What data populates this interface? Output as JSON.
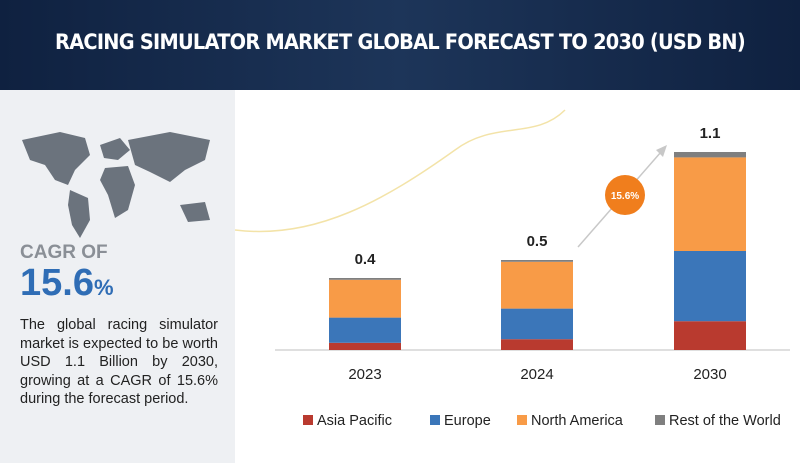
{
  "header": {
    "title": "RACING SIMULATOR MARKET GLOBAL FORECAST TO 2030 (USD BN)"
  },
  "sidebar": {
    "cagr_label": "CAGR OF",
    "cagr_value": "15.6",
    "cagr_unit": "%",
    "description": "The global racing simulator market is expected to be worth USD 1.1 Billion by 2030, growing at a CAGR of 15.6% during the forecast period."
  },
  "chart_data": {
    "type": "bar",
    "stacked": true,
    "categories": [
      "2023",
      "2024",
      "2030"
    ],
    "series": [
      {
        "name": "Asia Pacific",
        "color": "#b93a2f",
        "values": [
          0.04,
          0.06,
          0.16
        ]
      },
      {
        "name": "Europe",
        "color": "#3b76b9",
        "values": [
          0.14,
          0.17,
          0.39
        ]
      },
      {
        "name": "North America",
        "color": "#f89b47",
        "values": [
          0.21,
          0.26,
          0.52
        ]
      },
      {
        "name": "Rest of the World",
        "color": "#7f7f7f",
        "values": [
          0.01,
          0.01,
          0.03
        ]
      }
    ],
    "totals": [
      0.4,
      0.5,
      1.1
    ],
    "annotation": "15.6%",
    "annotation_color": "#f07e1d"
  }
}
